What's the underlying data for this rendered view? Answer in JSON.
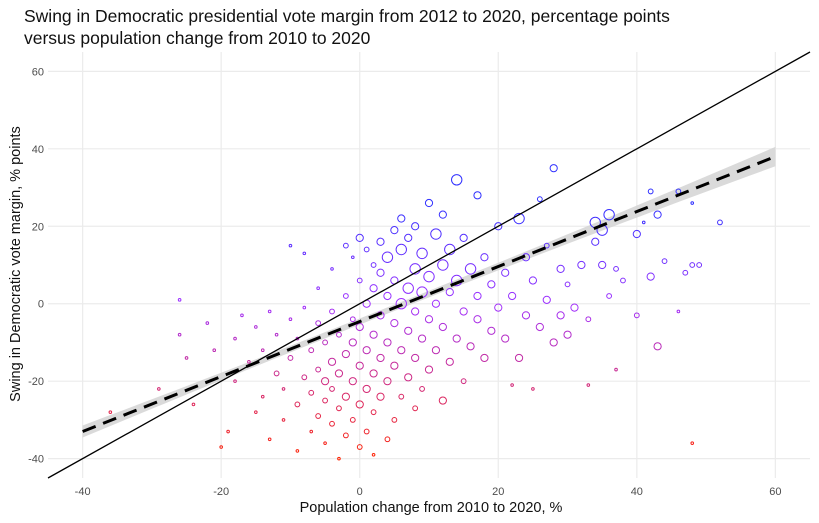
{
  "chart_data": {
    "type": "scatter",
    "title_line1": "Swing in Democratic presidential vote margin from 2012 to 2020, percentage points",
    "title_line2": "versus population change from 2010 to 2020",
    "xlabel": "Population change from 2010 to 2020, %",
    "ylabel": "Swing in Democratic vote margin, % points",
    "xlim": [
      -45,
      65
    ],
    "ylim": [
      -45,
      65
    ],
    "xticks": [
      -40,
      -20,
      0,
      20,
      40,
      60
    ],
    "yticks": [
      -40,
      -20,
      0,
      20,
      40,
      60
    ],
    "grid": true,
    "reference_line": {
      "label": "y = x",
      "slope": 1,
      "intercept": 0,
      "color": "#000000"
    },
    "regression_line": {
      "slope": 0.71,
      "intercept": -4.6,
      "x_range": [
        -40,
        60
      ],
      "ci_halfwidth_ends": 2.5,
      "ci_halfwidth_center": 0.8,
      "color": "#000000",
      "band_color": "#d3d3d3"
    },
    "color_scale": {
      "low": "#ff2200",
      "mid": "#a030ff",
      "high": "#3030ff",
      "variable": "swing"
    },
    "points_format": [
      "x",
      "y",
      "size"
    ],
    "points": [
      [
        -36,
        -28,
        1
      ],
      [
        -29,
        -22,
        1
      ],
      [
        -26,
        1,
        1
      ],
      [
        -26,
        -8,
        1
      ],
      [
        -25,
        -14,
        1
      ],
      [
        -24,
        -26,
        1
      ],
      [
        -22,
        -5,
        1
      ],
      [
        -21,
        -12,
        1
      ],
      [
        -20,
        -37,
        1
      ],
      [
        -19,
        -33,
        1
      ],
      [
        -18,
        -20,
        1
      ],
      [
        -18,
        -9,
        1
      ],
      [
        -17,
        -3,
        1
      ],
      [
        -16,
        -15,
        1
      ],
      [
        -15,
        -28,
        1
      ],
      [
        -15,
        -6,
        1
      ],
      [
        -14,
        -24,
        1
      ],
      [
        -14,
        -12,
        1
      ],
      [
        -13,
        -2,
        1
      ],
      [
        -13,
        -35,
        1
      ],
      [
        -12,
        -18,
        2
      ],
      [
        -12,
        -8,
        1
      ],
      [
        -11,
        -30,
        1
      ],
      [
        -11,
        -22,
        1
      ],
      [
        -10,
        -14,
        2
      ],
      [
        -10,
        -4,
        1
      ],
      [
        -10,
        15,
        1
      ],
      [
        -9,
        -38,
        1
      ],
      [
        -9,
        -26,
        2
      ],
      [
        -9,
        -9,
        1
      ],
      [
        -8,
        -19,
        2
      ],
      [
        -8,
        -1,
        1
      ],
      [
        -8,
        13,
        1
      ],
      [
        -7,
        -33,
        1
      ],
      [
        -7,
        -23,
        2
      ],
      [
        -7,
        -12,
        2
      ],
      [
        -6,
        -29,
        2
      ],
      [
        -6,
        -17,
        2
      ],
      [
        -6,
        -5,
        2
      ],
      [
        -6,
        4,
        1
      ],
      [
        -5,
        -36,
        1
      ],
      [
        -5,
        -25,
        2
      ],
      [
        -5,
        -20,
        3
      ],
      [
        -5,
        -10,
        2
      ],
      [
        -4,
        -31,
        2
      ],
      [
        -4,
        -22,
        2
      ],
      [
        -4,
        -15,
        3
      ],
      [
        -4,
        -2,
        2
      ],
      [
        -4,
        9,
        1
      ],
      [
        -3,
        -40,
        1
      ],
      [
        -3,
        -27,
        2
      ],
      [
        -3,
        -18,
        3
      ],
      [
        -3,
        -8,
        2
      ],
      [
        -2,
        -34,
        2
      ],
      [
        -2,
        -24,
        3
      ],
      [
        -2,
        -13,
        3
      ],
      [
        -2,
        2,
        2
      ],
      [
        -2,
        15,
        2
      ],
      [
        -1,
        -30,
        2
      ],
      [
        -1,
        -20,
        3
      ],
      [
        -1,
        -10,
        3
      ],
      [
        -1,
        -4,
        2
      ],
      [
        -1,
        12,
        1
      ],
      [
        0,
        -37,
        2
      ],
      [
        0,
        -26,
        3
      ],
      [
        0,
        -16,
        3
      ],
      [
        0,
        -6,
        3
      ],
      [
        0,
        6,
        2
      ],
      [
        0,
        17,
        3
      ],
      [
        1,
        -33,
        2
      ],
      [
        1,
        -22,
        3
      ],
      [
        1,
        -12,
        3
      ],
      [
        1,
        0,
        3
      ],
      [
        1,
        14,
        2
      ],
      [
        2,
        -39,
        1
      ],
      [
        2,
        -28,
        2
      ],
      [
        2,
        -18,
        3
      ],
      [
        2,
        -8,
        3
      ],
      [
        2,
        4,
        3
      ],
      [
        2,
        10,
        2
      ],
      [
        3,
        -24,
        3
      ],
      [
        3,
        -14,
        3
      ],
      [
        3,
        -3,
        3
      ],
      [
        3,
        8,
        3
      ],
      [
        3,
        16,
        3
      ],
      [
        4,
        -35,
        2
      ],
      [
        4,
        -20,
        3
      ],
      [
        4,
        -10,
        3
      ],
      [
        4,
        2,
        3
      ],
      [
        4,
        12,
        4
      ],
      [
        5,
        -30,
        2
      ],
      [
        5,
        -16,
        3
      ],
      [
        5,
        -5,
        3
      ],
      [
        5,
        6,
        3
      ],
      [
        5,
        19,
        3
      ],
      [
        6,
        -24,
        2
      ],
      [
        6,
        -12,
        3
      ],
      [
        6,
        0,
        4
      ],
      [
        6,
        14,
        4
      ],
      [
        6,
        22,
        3
      ],
      [
        7,
        -19,
        3
      ],
      [
        7,
        -7,
        3
      ],
      [
        7,
        4,
        4
      ],
      [
        7,
        17,
        3
      ],
      [
        8,
        -27,
        2
      ],
      [
        8,
        -14,
        3
      ],
      [
        8,
        -2,
        3
      ],
      [
        8,
        9,
        4
      ],
      [
        8,
        20,
        3
      ],
      [
        9,
        -22,
        2
      ],
      [
        9,
        -9,
        3
      ],
      [
        9,
        3,
        4
      ],
      [
        9,
        13,
        4
      ],
      [
        10,
        -17,
        3
      ],
      [
        10,
        -4,
        3
      ],
      [
        10,
        7,
        4
      ],
      [
        10,
        26,
        3
      ],
      [
        11,
        -12,
        3
      ],
      [
        11,
        0,
        3
      ],
      [
        11,
        18,
        4
      ],
      [
        12,
        -25,
        3
      ],
      [
        12,
        -6,
        3
      ],
      [
        12,
        10,
        4
      ],
      [
        12,
        23,
        3
      ],
      [
        13,
        -15,
        3
      ],
      [
        13,
        3,
        3
      ],
      [
        13,
        14,
        4
      ],
      [
        14,
        -9,
        3
      ],
      [
        14,
        6,
        4
      ],
      [
        14,
        32,
        4
      ],
      [
        15,
        -20,
        2
      ],
      [
        15,
        -2,
        3
      ],
      [
        15,
        17,
        3
      ],
      [
        16,
        -11,
        3
      ],
      [
        16,
        9,
        4
      ],
      [
        17,
        -4,
        3
      ],
      [
        17,
        2,
        3
      ],
      [
        17,
        28,
        3
      ],
      [
        18,
        -14,
        3
      ],
      [
        18,
        12,
        3
      ],
      [
        19,
        -7,
        3
      ],
      [
        19,
        5,
        3
      ],
      [
        20,
        -1,
        3
      ],
      [
        20,
        20,
        3
      ],
      [
        21,
        -9,
        3
      ],
      [
        21,
        8,
        3
      ],
      [
        22,
        -21,
        1
      ],
      [
        22,
        2,
        3
      ],
      [
        23,
        -14,
        3
      ],
      [
        23,
        22,
        4
      ],
      [
        24,
        -3,
        3
      ],
      [
        24,
        12,
        3
      ],
      [
        25,
        -22,
        1
      ],
      [
        25,
        6,
        3
      ],
      [
        26,
        -6,
        3
      ],
      [
        26,
        27,
        2
      ],
      [
        27,
        1,
        3
      ],
      [
        27,
        15,
        2
      ],
      [
        28,
        35,
        3
      ],
      [
        28,
        -10,
        3
      ],
      [
        29,
        -3,
        3
      ],
      [
        29,
        9,
        3
      ],
      [
        30,
        5,
        2
      ],
      [
        30,
        -8,
        3
      ],
      [
        31,
        -1,
        3
      ],
      [
        32,
        10,
        3
      ],
      [
        33,
        -4,
        2
      ],
      [
        33,
        -21,
        1
      ],
      [
        34,
        21,
        4
      ],
      [
        34,
        16,
        3
      ],
      [
        35,
        10,
        3
      ],
      [
        35,
        19,
        4
      ],
      [
        36,
        23,
        4
      ],
      [
        36,
        2,
        2
      ],
      [
        37,
        -17,
        1
      ],
      [
        37,
        9,
        2
      ],
      [
        38,
        6,
        2
      ],
      [
        40,
        -3,
        2
      ],
      [
        40,
        18,
        3
      ],
      [
        41,
        21,
        1
      ],
      [
        42,
        29,
        2
      ],
      [
        42,
        7,
        3
      ],
      [
        43,
        23,
        3
      ],
      [
        43,
        -11,
        3
      ],
      [
        44,
        11,
        2
      ],
      [
        46,
        -2,
        1
      ],
      [
        46,
        29,
        2
      ],
      [
        47,
        8,
        2
      ],
      [
        48,
        26,
        1
      ],
      [
        48,
        -36,
        1
      ],
      [
        48,
        10,
        2
      ],
      [
        49,
        10,
        2
      ],
      [
        52,
        21,
        2
      ]
    ]
  }
}
